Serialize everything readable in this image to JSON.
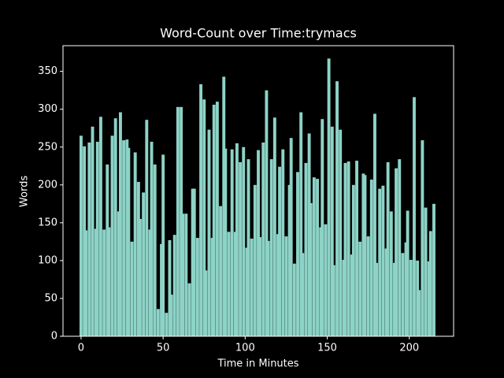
{
  "chart_data": {
    "type": "bar",
    "title": "Word-Count over Time:trymacs",
    "xlabel": "Time in Minutes",
    "ylabel": "Words",
    "color": "#8dd3c7",
    "x": [
      0,
      2,
      3,
      5,
      7,
      9,
      10,
      12,
      14,
      16,
      17,
      19,
      21,
      23,
      24,
      26,
      28,
      29,
      31,
      33,
      35,
      36,
      38,
      40,
      42,
      43,
      45,
      47,
      49,
      50,
      52,
      54,
      55,
      57,
      59,
      61,
      62,
      64,
      66,
      68,
      69,
      71,
      73,
      75,
      76,
      78,
      80,
      81,
      83,
      85,
      87,
      88,
      90,
      92,
      94,
      95,
      97,
      99,
      101,
      102,
      104,
      106,
      108,
      109,
      111,
      113,
      114,
      116,
      118,
      120,
      121,
      123,
      125,
      127,
      128,
      130,
      132,
      134,
      135,
      137,
      139,
      140,
      142,
      144,
      146,
      147,
      149,
      151,
      153,
      154,
      156,
      158,
      160,
      161,
      163,
      165,
      166,
      168,
      170,
      172,
      173,
      175,
      177,
      179,
      180,
      182,
      184,
      186,
      187,
      189,
      191,
      192,
      194,
      196,
      198,
      199,
      201,
      203,
      205,
      206,
      208,
      210,
      212,
      213,
      215
    ],
    "values": [
      265,
      251,
      140,
      256,
      277,
      142,
      257,
      290,
      141,
      227,
      144,
      265,
      288,
      165,
      296,
      259,
      260,
      249,
      125,
      243,
      204,
      155,
      190,
      286,
      141,
      257,
      227,
      36,
      122,
      240,
      31,
      127,
      55,
      134,
      303,
      303,
      162,
      162,
      70,
      195,
      195,
      130,
      333,
      313,
      87,
      273,
      130,
      306,
      310,
      172,
      343,
      248,
      138,
      247,
      138,
      255,
      230,
      250,
      117,
      234,
      129,
      200,
      246,
      131,
      256,
      325,
      126,
      234,
      289,
      135,
      224,
      247,
      132,
      200,
      262,
      96,
      217,
      296,
      110,
      229,
      268,
      176,
      210,
      208,
      144,
      287,
      148,
      367,
      277,
      94,
      337,
      273,
      101,
      229,
      231,
      108,
      200,
      232,
      125,
      215,
      213,
      132,
      207,
      294,
      97,
      195,
      199,
      116,
      230,
      165,
      97,
      222,
      234,
      110,
      124,
      166,
      101,
      316,
      100,
      61,
      259,
      170,
      99,
      139,
      175
    ],
    "xlim": [
      -11,
      227
    ],
    "ylim": [
      0,
      384
    ],
    "xticks": [
      0,
      50,
      100,
      150,
      200
    ],
    "yticks": [
      0,
      50,
      100,
      150,
      200,
      250,
      300,
      350
    ]
  }
}
